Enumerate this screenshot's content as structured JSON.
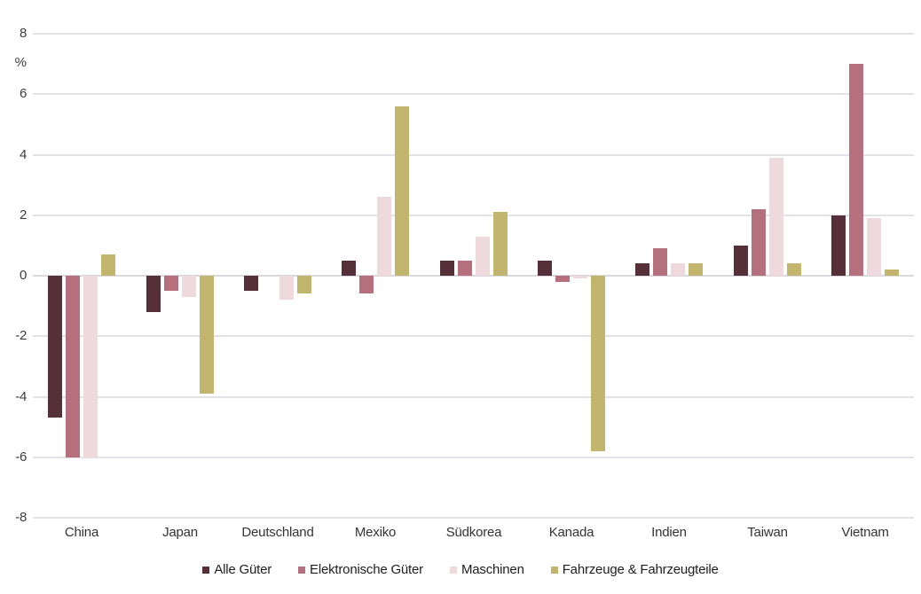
{
  "chart_data": {
    "type": "bar",
    "title": "",
    "xlabel": "",
    "ylabel": "%",
    "unit_label": "%",
    "ylim": [
      -8,
      8
    ],
    "y_ticks": [
      8,
      6,
      4,
      2,
      0,
      -2,
      -4,
      -6,
      -8
    ],
    "grid": true,
    "legend_position": "bottom",
    "categories": [
      "China",
      "Japan",
      "Deutschland",
      "Mexiko",
      "Südkorea",
      "Kanada",
      "Indien",
      "Taiwan",
      "Vietnam"
    ],
    "series": [
      {
        "name": "Alle Güter",
        "color": "#553039",
        "values": [
          -4.7,
          -1.2,
          -0.5,
          0.5,
          0.5,
          0.5,
          0.4,
          1.0,
          2.0
        ]
      },
      {
        "name": "Elektronische Güter",
        "color": "#b66f7d",
        "values": [
          -6.0,
          -0.5,
          0.0,
          -0.6,
          0.5,
          -0.2,
          0.9,
          2.2,
          7.0
        ]
      },
      {
        "name": "Maschinen",
        "color": "#eed9dd",
        "values": [
          -6.0,
          -0.7,
          -0.8,
          2.6,
          1.3,
          -0.1,
          0.4,
          3.9,
          1.9
        ]
      },
      {
        "name": "Fahrzeuge & Fahrzeugteile",
        "color": "#c2b56e",
        "values": [
          0.7,
          -3.9,
          -0.6,
          5.6,
          2.1,
          -5.8,
          0.4,
          0.4,
          0.2
        ]
      }
    ]
  },
  "colors": {
    "background": "#ffffff",
    "grid": "#e2e2e7",
    "zero_line": "#d8d8dd",
    "axis_text": "#3c3c3c",
    "legend_text": "#202020"
  }
}
